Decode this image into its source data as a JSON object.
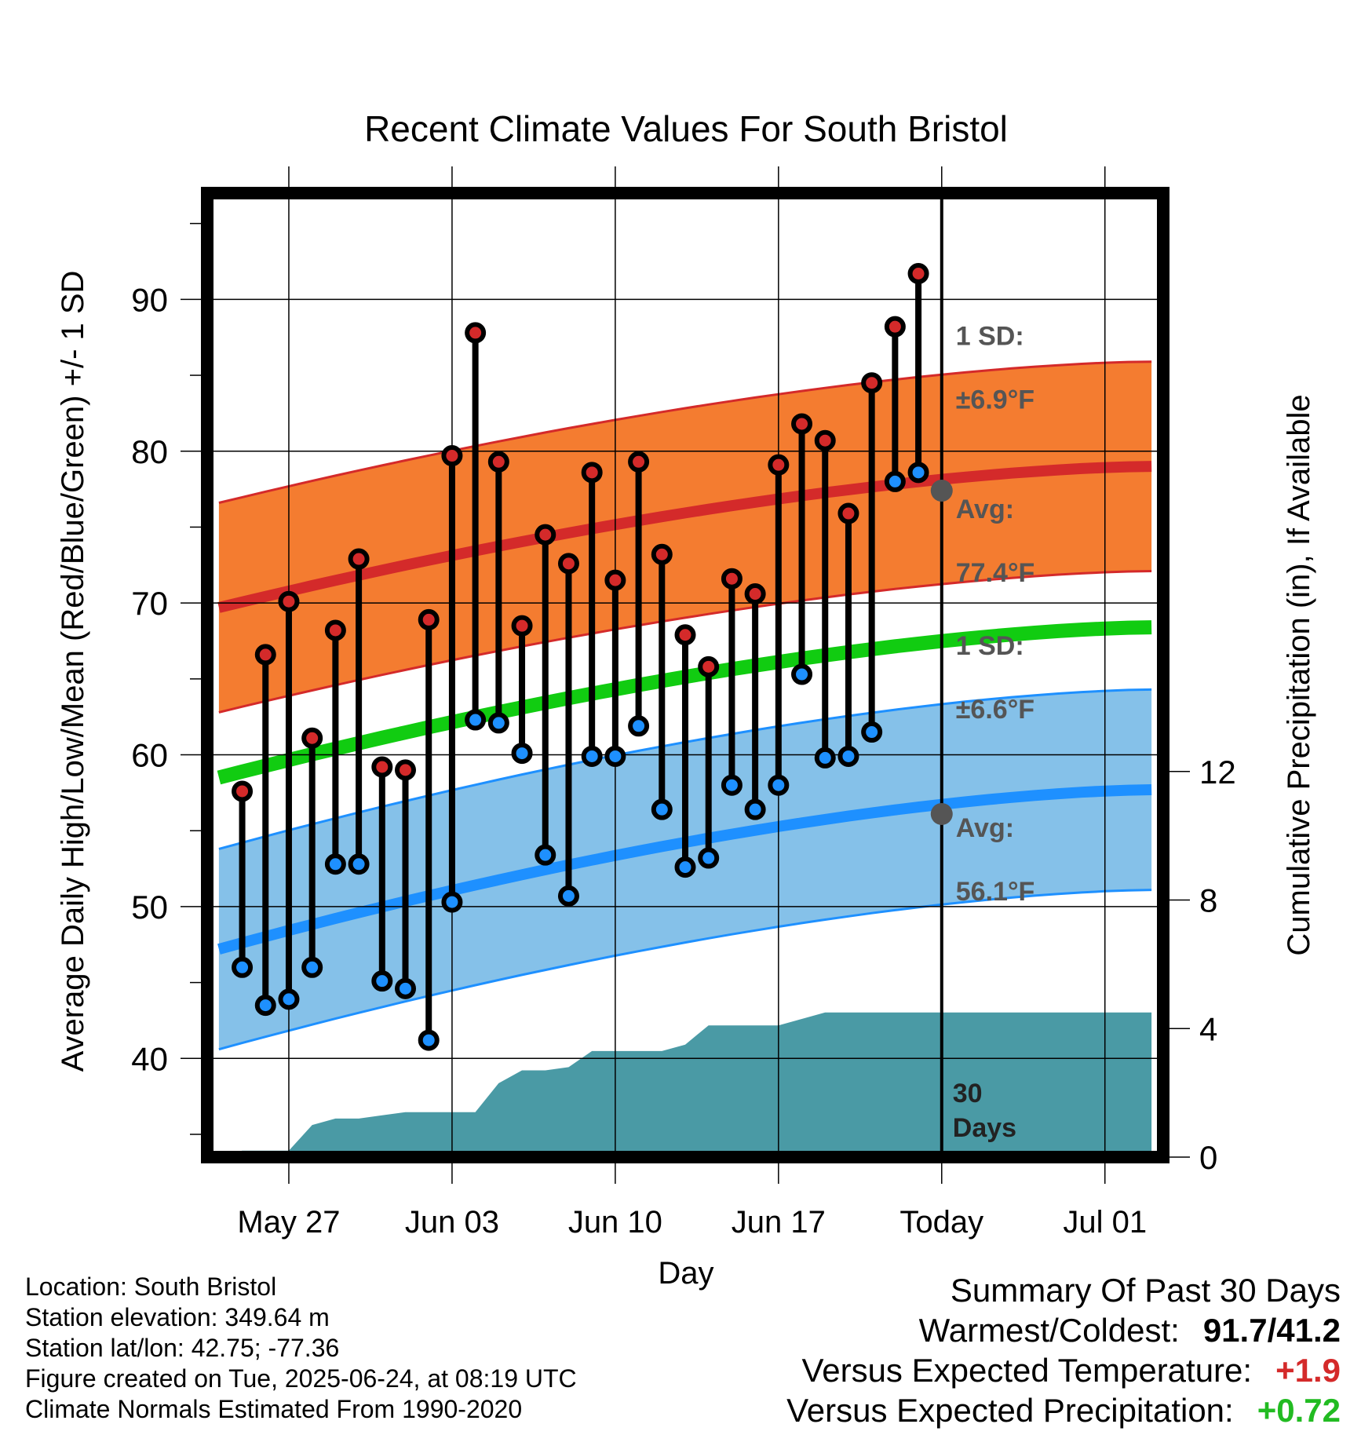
{
  "chart_data": {
    "type": "line",
    "title": "Recent Climate Values For South Bristol",
    "xlabel": "Day",
    "ylabel": "Average Daily High/Low/Mean (Red/Blue/Green) +/- 1 SD",
    "y2label": "Cumulative Precipitation (in), If Available",
    "x_tick_labels": [
      "May 27",
      "Jun 03",
      "Jun 10",
      "Jun 17",
      "Today",
      "Jul 01"
    ],
    "x_range_days": [
      -31.5,
      9.5
    ],
    "x_tick_days": [
      -28,
      -21,
      -14,
      -7,
      0,
      7
    ],
    "ylim": [
      33.5,
      97
    ],
    "y_ticks": [
      40,
      50,
      60,
      70,
      80,
      90
    ],
    "y2lim": [
      0,
      30
    ],
    "y2_ticks": [
      0,
      4,
      8,
      12
    ],
    "grid": true,
    "days": [
      -30,
      -29,
      -28,
      -27,
      -26,
      -25,
      -24,
      -23,
      -22,
      -21,
      -20,
      -19,
      -18,
      -17,
      -16,
      -15,
      -14,
      -13,
      -12,
      -11,
      -10,
      -9,
      -8,
      -7,
      -6,
      -5,
      -4,
      -3,
      -2,
      -1
    ],
    "series": [
      {
        "name": "High",
        "color": "#d42a2a",
        "values": [
          57.6,
          66.6,
          70.1,
          61.1,
          68.2,
          72.9,
          59.2,
          59.0,
          68.9,
          79.7,
          87.8,
          79.3,
          68.5,
          74.5,
          72.6,
          78.6,
          71.5,
          79.3,
          73.2,
          67.9,
          65.8,
          71.6,
          70.6,
          79.1,
          81.8,
          80.7,
          75.9,
          84.5,
          88.2,
          91.7
        ]
      },
      {
        "name": "Low",
        "color": "#1e90ff",
        "values": [
          46.0,
          43.5,
          43.9,
          46.0,
          52.8,
          52.8,
          45.1,
          44.6,
          41.2,
          50.3,
          62.3,
          62.1,
          60.1,
          53.4,
          50.7,
          59.9,
          59.9,
          61.9,
          56.4,
          52.6,
          53.2,
          58.0,
          56.4,
          58.0,
          65.3,
          59.8,
          59.9,
          61.5,
          78.0,
          78.6
        ]
      }
    ],
    "normals": {
      "days": [
        -31,
        9
      ],
      "high_avg": [
        69.7,
        79.0
      ],
      "high_sd": 6.9,
      "low_avg": [
        47.2,
        57.7
      ],
      "low_sd": 6.6,
      "mean_avg": [
        58.5,
        68.4
      ],
      "colors": {
        "high_band": "#f47c30",
        "high_line": "#d42a2a",
        "low_band": "#85c1e9",
        "low_line": "#1e90ff",
        "mean_line": "#11cc11",
        "precip": "#4a9aa5"
      }
    },
    "precipitation": {
      "days": [
        -31,
        -30,
        -28,
        -27,
        -26,
        -25,
        -24,
        -23,
        -22,
        -21,
        -20,
        -19,
        -18,
        -17,
        -16,
        -15,
        -14,
        -13,
        -12,
        -11,
        -10,
        -9,
        -8,
        -7,
        -6,
        -5,
        -4,
        -3,
        -2,
        -1,
        0,
        9
      ],
      "values": [
        0.0,
        0.2,
        0.2,
        1.0,
        1.2,
        1.2,
        1.3,
        1.4,
        1.4,
        1.4,
        1.4,
        2.3,
        2.7,
        2.7,
        2.8,
        3.3,
        3.3,
        3.3,
        3.3,
        3.5,
        4.1,
        4.1,
        4.1,
        4.1,
        4.3,
        4.5,
        4.5,
        4.5,
        4.5,
        4.5,
        4.5,
        4.5
      ]
    },
    "annotations": {
      "high_sd_text": "1 SD:",
      "high_sd_value": "±6.9°F",
      "high_avg_text": "Avg:",
      "high_avg_value": "77.4°F",
      "low_sd_text": "1 SD:",
      "low_sd_value": "±6.6°F",
      "low_avg_text": "Avg:",
      "low_avg_value": "56.1°F",
      "days_count": "30",
      "days_word": "Days"
    }
  },
  "footer": {
    "location": "Location: South Bristol",
    "elevation": "Station elevation: 349.64 m",
    "latlon": "Station lat/lon: 42.75; -77.36",
    "created": "Figure created on Tue, 2025-06-24, at 08:19 UTC",
    "normals": "Climate Normals Estimated From 1990-2020"
  },
  "summary": {
    "title": "Summary Of Past 30 Days",
    "warm_cold_label": "Warmest/Coldest:",
    "warm_cold_value": "91.7/41.2",
    "temp_label": "Versus Expected Temperature:",
    "temp_value": "+1.9",
    "precip_label": "Versus Expected Precipitation:",
    "precip_value": "+0.72"
  }
}
